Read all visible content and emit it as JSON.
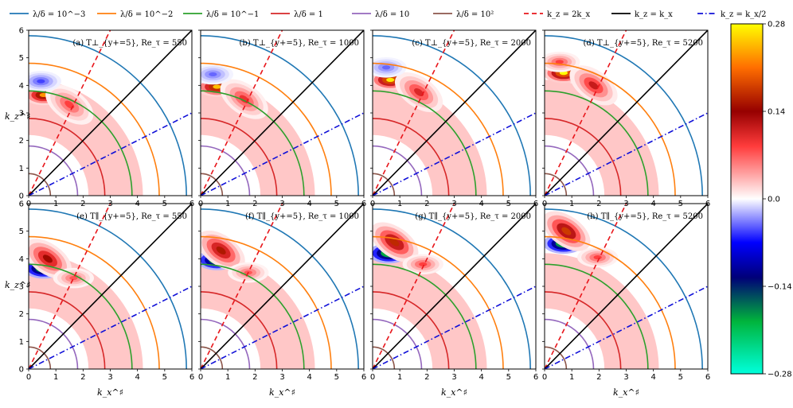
{
  "chart_data": {
    "type": "contour",
    "title": "",
    "xlabel": "k_x^♯",
    "ylabel": "k_z^♯",
    "xlim": [
      0,
      6
    ],
    "ylim": [
      0,
      6
    ],
    "xticks": [
      "0",
      "1",
      "2",
      "3",
      "4",
      "5",
      "6"
    ],
    "yticks": [
      "0",
      "1",
      "2",
      "3",
      "4",
      "5",
      "6"
    ],
    "legend": [
      {
        "label": "λ/δ = 10^−3",
        "color": "#1f77b4",
        "style": "solid",
        "radius": 5.8
      },
      {
        "label": "λ/δ = 10^−2",
        "color": "#ff7f0e",
        "style": "solid",
        "radius": 4.8
      },
      {
        "label": "λ/δ = 10^−1",
        "color": "#2ca02c",
        "style": "solid",
        "radius": 3.8
      },
      {
        "label": "λ/δ = 1",
        "color": "#d62728",
        "style": "solid",
        "radius": 2.8
      },
      {
        "label": "λ/δ = 10",
        "color": "#9467bd",
        "style": "solid",
        "radius": 1.8
      },
      {
        "label": "λ/δ = 10²",
        "color": "#8c564b",
        "style": "solid",
        "radius": 0.8
      },
      {
        "label": "k_z = 2k_x",
        "color": "#e8161b",
        "style": "dashed",
        "slope": 2
      },
      {
        "label": "k_z = k_x",
        "color": "#000000",
        "style": "solid",
        "slope": 1
      },
      {
        "label": "k_z = k_x/2",
        "color": "#1010d8",
        "style": "dashdot",
        "slope": 0.5
      }
    ],
    "colorbar": {
      "min": -0.28,
      "max": 0.28,
      "ticks": [
        "0.28",
        "0.14",
        "0.0",
        "−0.14",
        "−0.28"
      ]
    },
    "panels": [
      {
        "label": "(a) T⊥_{y+=5}, Re_τ = 550",
        "component": "perp",
        "Re_tau": 550,
        "blobs": [
          {
            "kx": 0.3,
            "kz": 3.65,
            "value": 0.22
          },
          {
            "kx": 1.3,
            "kz": 3.3,
            "value": 0.08
          },
          {
            "kx": 0.2,
            "kz": 4.15,
            "value": -0.05
          }
        ]
      },
      {
        "label": "(b) T⊥_{y+=5}, Re_τ = 1000",
        "component": "perp",
        "Re_tau": 1000,
        "blobs": [
          {
            "kx": 0.35,
            "kz": 3.95,
            "value": 0.24
          },
          {
            "kx": 1.4,
            "kz": 3.5,
            "value": 0.09
          },
          {
            "kx": 0.2,
            "kz": 4.4,
            "value": -0.04
          }
        ]
      },
      {
        "label": "(c) T⊥_{y+=5}, Re_τ = 2000",
        "component": "perp",
        "Re_tau": 2000,
        "blobs": [
          {
            "kx": 0.4,
            "kz": 4.2,
            "value": 0.26
          },
          {
            "kx": 1.5,
            "kz": 3.75,
            "value": 0.1
          },
          {
            "kx": 0.25,
            "kz": 4.65,
            "value": -0.04
          }
        ]
      },
      {
        "label": "(d) T⊥_{y+=5}, Re_τ = 5200",
        "component": "perp",
        "Re_tau": 5200,
        "blobs": [
          {
            "kx": 0.45,
            "kz": 4.45,
            "value": 0.27
          },
          {
            "kx": 1.6,
            "kz": 4.0,
            "value": 0.11
          },
          {
            "kx": 0.3,
            "kz": 4.85,
            "value": 0.08
          }
        ]
      },
      {
        "label": "(e) T∥_{y+=5}, Re_τ = 550",
        "component": "par",
        "Re_tau": 550,
        "blobs": [
          {
            "kx": 0.3,
            "kz": 3.65,
            "value": -0.27
          },
          {
            "kx": 0.5,
            "kz": 4.0,
            "value": 0.14
          },
          {
            "kx": 1.4,
            "kz": 3.3,
            "value": 0.07
          }
        ]
      },
      {
        "label": "(f) T∥_{y+=5}, Re_τ = 1000",
        "component": "par",
        "Re_tau": 1000,
        "blobs": [
          {
            "kx": 0.35,
            "kz": 3.95,
            "value": -0.25
          },
          {
            "kx": 0.55,
            "kz": 4.3,
            "value": 0.15
          },
          {
            "kx": 1.5,
            "kz": 3.5,
            "value": 0.07
          }
        ]
      },
      {
        "label": "(g) T∥_{y+=5}, Re_τ = 2000",
        "component": "par",
        "Re_tau": 2000,
        "blobs": [
          {
            "kx": 0.35,
            "kz": 4.2,
            "value": -0.27
          },
          {
            "kx": 0.6,
            "kz": 4.6,
            "value": 0.16
          },
          {
            "kx": 1.6,
            "kz": 3.8,
            "value": 0.08
          }
        ]
      },
      {
        "label": "(h) T∥_{y+=5}, Re_τ = 5200",
        "component": "par",
        "Re_tau": 5200,
        "blobs": [
          {
            "kx": 0.45,
            "kz": 4.55,
            "value": -0.26
          },
          {
            "kx": 0.6,
            "kz": 5.0,
            "value": 0.17
          },
          {
            "kx": 1.7,
            "kz": 4.05,
            "value": 0.08
          }
        ]
      }
    ]
  }
}
